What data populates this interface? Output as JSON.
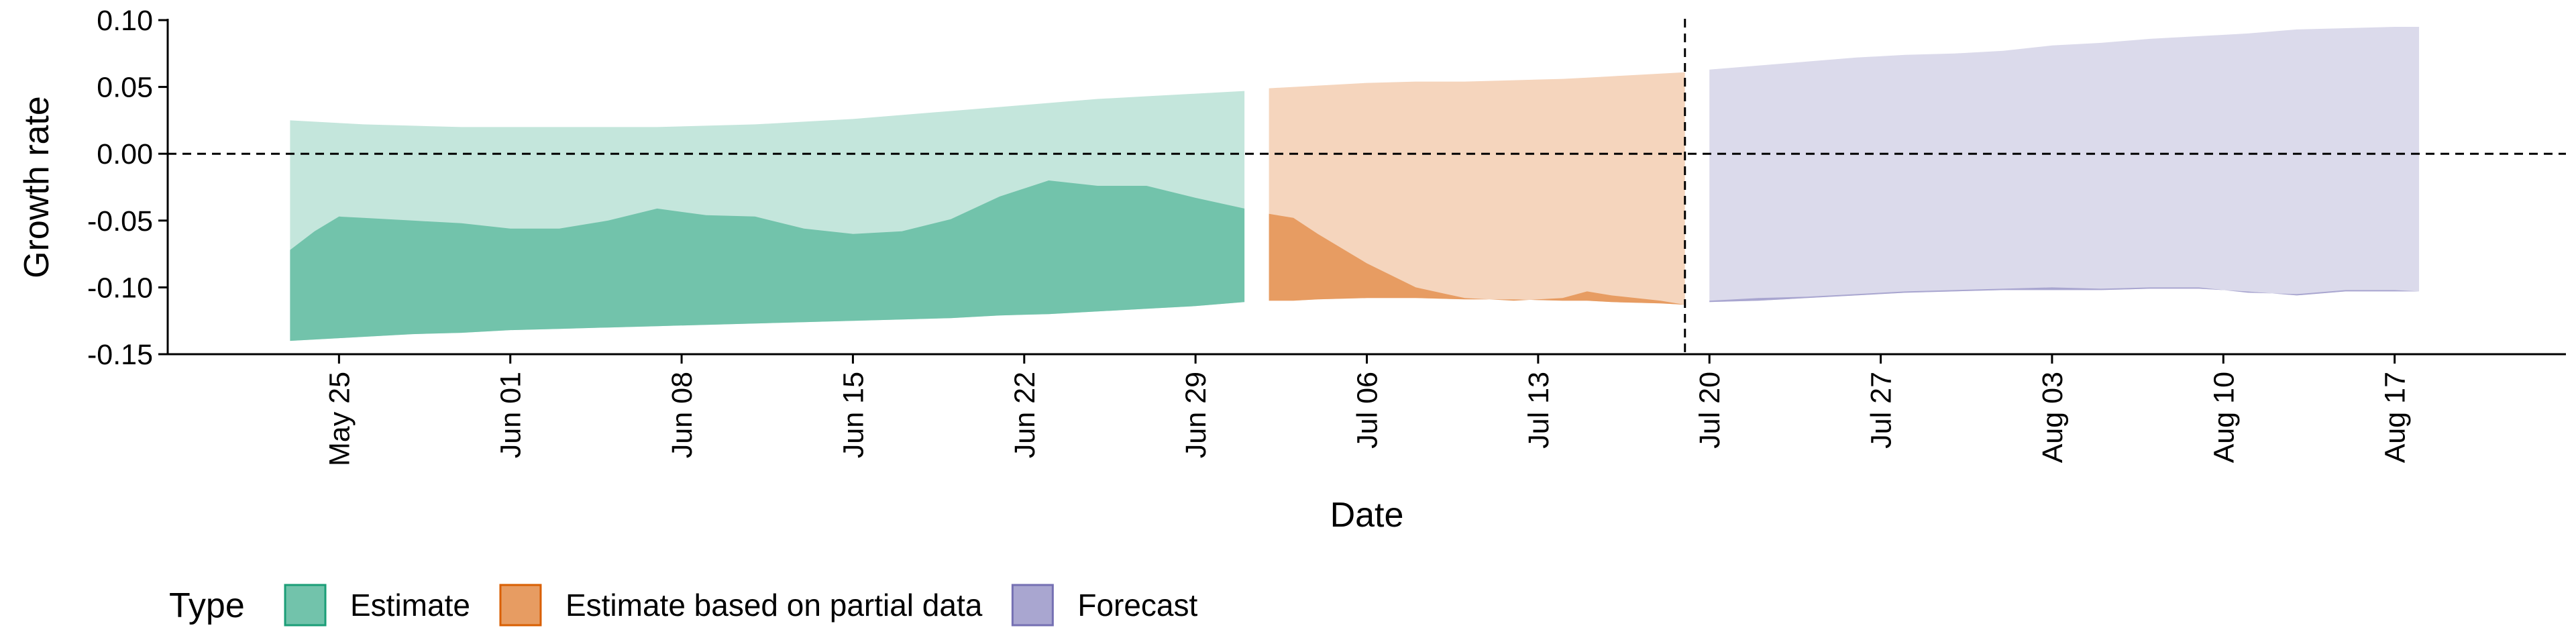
{
  "chart_data": {
    "type": "area",
    "xlabel": "Date",
    "ylabel": "Growth rate",
    "ylim": [
      -0.15,
      0.1
    ],
    "xlim": [
      "2020-05-18",
      "2020-08-24"
    ],
    "y_ticks": [
      0.1,
      0.05,
      0.0,
      -0.05,
      -0.1,
      -0.15
    ],
    "y_tick_labels": [
      "0.10",
      "0.05",
      "0.00",
      "-0.05",
      "-0.10",
      "-0.15"
    ],
    "x_ticks": [
      "2020-05-25",
      "2020-06-01",
      "2020-06-08",
      "2020-06-15",
      "2020-06-22",
      "2020-06-29",
      "2020-07-06",
      "2020-07-13",
      "2020-07-20",
      "2020-07-27",
      "2020-08-03",
      "2020-08-10",
      "2020-08-17"
    ],
    "x_tick_labels": [
      "May 25",
      "Jun 01",
      "Jun 08",
      "Jun 15",
      "Jun 22",
      "Jun 29",
      "Jul 06",
      "Jul 13",
      "Jul 20",
      "Jul 27",
      "Aug 03",
      "Aug 10",
      "Aug 17"
    ],
    "reference_lines": {
      "horizontal_y": 0.0,
      "vertical_x": "2020-07-19"
    },
    "legend": {
      "title": "Type",
      "position": "bottom-left"
    },
    "series": [
      {
        "name": "Estimate",
        "color": "#1b9e77",
        "x": [
          "2020-05-23",
          "2020-05-24",
          "2020-05-25",
          "2020-05-26",
          "2020-05-28",
          "2020-05-30",
          "2020-06-01",
          "2020-06-03",
          "2020-06-05",
          "2020-06-07",
          "2020-06-09",
          "2020-06-11",
          "2020-06-13",
          "2020-06-15",
          "2020-06-17",
          "2020-06-19",
          "2020-06-21",
          "2020-06-23",
          "2020-06-25",
          "2020-06-27",
          "2020-06-29",
          "2020-07-01"
        ],
        "outer_upper": [
          0.025,
          0.024,
          0.023,
          0.022,
          0.021,
          0.02,
          0.02,
          0.02,
          0.02,
          0.02,
          0.021,
          0.022,
          0.024,
          0.026,
          0.029,
          0.032,
          0.035,
          0.038,
          0.041,
          0.043,
          0.045,
          0.047
        ],
        "outer_lower": [
          -0.14,
          -0.139,
          -0.138,
          -0.137,
          -0.135,
          -0.134,
          -0.132,
          -0.131,
          -0.13,
          -0.129,
          -0.128,
          -0.127,
          -0.126,
          -0.125,
          -0.124,
          -0.123,
          -0.121,
          -0.12,
          -0.118,
          -0.116,
          -0.114,
          -0.111
        ],
        "inner_upper": [
          -0.072,
          -0.058,
          -0.047,
          -0.048,
          -0.05,
          -0.052,
          -0.056,
          -0.056,
          -0.05,
          -0.041,
          -0.046,
          -0.047,
          -0.056,
          -0.06,
          -0.058,
          -0.049,
          -0.032,
          -0.02,
          -0.024,
          -0.024,
          -0.033,
          -0.041
        ],
        "inner_lower": [
          -0.14,
          -0.139,
          -0.138,
          -0.137,
          -0.135,
          -0.134,
          -0.132,
          -0.131,
          -0.13,
          -0.129,
          -0.128,
          -0.127,
          -0.126,
          -0.125,
          -0.124,
          -0.123,
          -0.121,
          -0.12,
          -0.118,
          -0.116,
          -0.114,
          -0.111
        ]
      },
      {
        "name": "Estimate based on partial data",
        "color": "#d95f02",
        "x": [
          "2020-07-02",
          "2020-07-03",
          "2020-07-04",
          "2020-07-06",
          "2020-07-08",
          "2020-07-10",
          "2020-07-12",
          "2020-07-14",
          "2020-07-15",
          "2020-07-16",
          "2020-07-18",
          "2020-07-19"
        ],
        "outer_upper": [
          0.049,
          0.05,
          0.051,
          0.053,
          0.054,
          0.054,
          0.055,
          0.056,
          0.057,
          0.058,
          0.06,
          0.061
        ],
        "outer_lower": [
          -0.11,
          -0.11,
          -0.109,
          -0.108,
          -0.108,
          -0.109,
          -0.109,
          -0.11,
          -0.11,
          -0.111,
          -0.112,
          -0.113
        ],
        "inner_upper": [
          -0.045,
          -0.048,
          -0.06,
          -0.082,
          -0.1,
          -0.108,
          -0.11,
          -0.108,
          -0.103,
          -0.106,
          -0.11,
          -0.113
        ],
        "inner_lower": [
          -0.11,
          -0.11,
          -0.109,
          -0.108,
          -0.108,
          -0.109,
          -0.109,
          -0.11,
          -0.11,
          -0.111,
          -0.112,
          -0.113
        ]
      },
      {
        "name": "Forecast",
        "color": "#7570b3",
        "x": [
          "2020-07-20",
          "2020-07-22",
          "2020-07-24",
          "2020-07-26",
          "2020-07-28",
          "2020-07-30",
          "2020-08-01",
          "2020-08-03",
          "2020-08-05",
          "2020-08-07",
          "2020-08-09",
          "2020-08-11",
          "2020-08-13",
          "2020-08-15",
          "2020-08-17",
          "2020-08-18"
        ],
        "outer_upper": [
          0.063,
          0.066,
          0.069,
          0.072,
          0.074,
          0.075,
          0.077,
          0.081,
          0.083,
          0.086,
          0.088,
          0.09,
          0.093,
          0.094,
          0.095,
          0.095
        ],
        "outer_lower": [
          -0.111,
          -0.11,
          -0.108,
          -0.106,
          -0.104,
          -0.103,
          -0.102,
          -0.102,
          -0.102,
          -0.101,
          -0.101,
          -0.103,
          -0.106,
          -0.103,
          -0.103,
          -0.103
        ],
        "inner_upper": [
          -0.11,
          -0.108,
          -0.107,
          -0.105,
          -0.103,
          -0.102,
          -0.101,
          -0.1,
          -0.101,
          -0.1,
          -0.1,
          -0.104,
          -0.105,
          -0.102,
          -0.102,
          -0.103
        ],
        "inner_lower": [
          -0.111,
          -0.11,
          -0.108,
          -0.106,
          -0.104,
          -0.103,
          -0.102,
          -0.102,
          -0.102,
          -0.101,
          -0.101,
          -0.103,
          -0.106,
          -0.103,
          -0.103,
          -0.103
        ]
      }
    ]
  }
}
